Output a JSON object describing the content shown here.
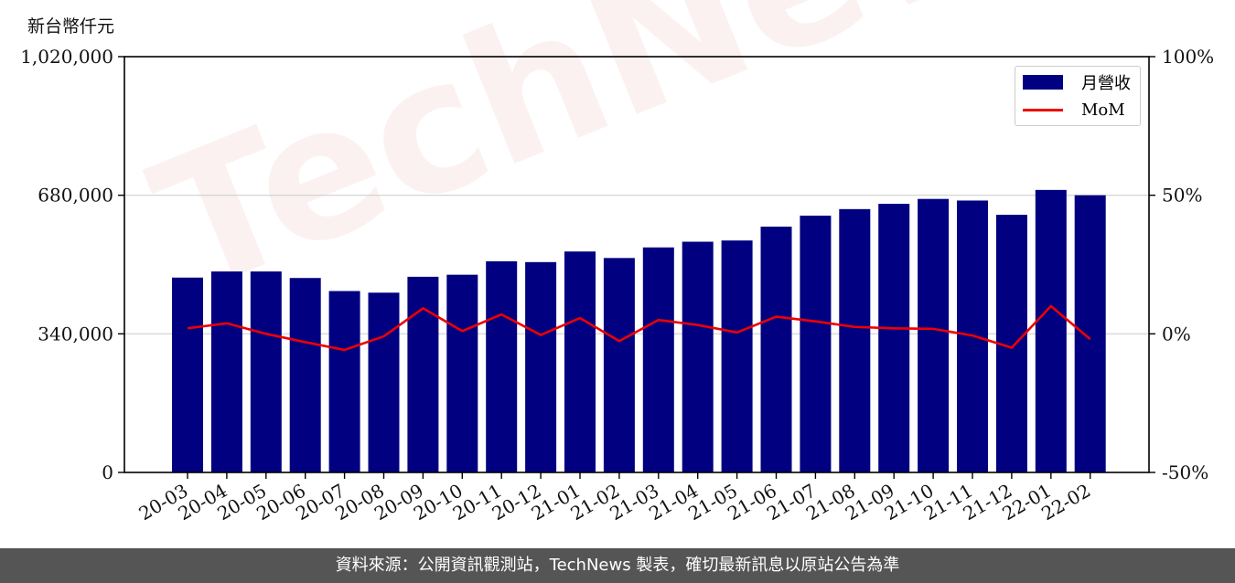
{
  "unit_label": "新台幣仟元",
  "footer_text": "資料來源：公開資訊觀測站，TechNews 製表，確切最新訊息以原站公告為準",
  "watermark": "TechNews",
  "legend": {
    "bar_label": "月營收",
    "line_label": "MoM"
  },
  "colors": {
    "bar": "#000080",
    "line": "#ee0000",
    "grid": "#d0d0d0",
    "footer_bg": "#555555"
  },
  "chart_data": {
    "type": "bar",
    "title": "",
    "xlabel": "",
    "ylabel": "新台幣仟元",
    "categories": [
      "20-03",
      "20-04",
      "20-05",
      "20-06",
      "20-07",
      "20-08",
      "20-09",
      "20-10",
      "20-11",
      "20-12",
      "21-01",
      "21-02",
      "21-03",
      "21-04",
      "21-05",
      "21-06",
      "21-07",
      "21-08",
      "21-09",
      "21-10",
      "21-11",
      "21-12",
      "22-01",
      "22-02"
    ],
    "series": [
      {
        "name": "月營收",
        "axis": "left",
        "type": "bar",
        "values": [
          478000,
          493000,
          493000,
          477000,
          445000,
          441000,
          480000,
          485000,
          518000,
          516000,
          542000,
          526000,
          552000,
          566000,
          569000,
          603000,
          630000,
          646000,
          659000,
          671000,
          667000,
          632000,
          693000,
          680000
        ]
      },
      {
        "name": "MoM",
        "axis": "right",
        "type": "line",
        "unit": "%",
        "values": [
          2.0,
          3.8,
          0.0,
          -3.0,
          -5.8,
          -0.9,
          9.2,
          1.0,
          7.0,
          -0.4,
          5.7,
          -2.6,
          5.0,
          3.2,
          0.5,
          6.2,
          4.5,
          2.5,
          2.0,
          1.8,
          -0.6,
          -5.0,
          10.0,
          -1.9
        ]
      }
    ],
    "y_left": {
      "ylim": [
        0,
        1020000
      ],
      "ticks": [
        0,
        340000,
        680000,
        1020000
      ],
      "tick_labels": [
        "0",
        "340,000",
        "680,000",
        "1,020,000"
      ]
    },
    "y_right": {
      "ylim": [
        -50,
        100
      ],
      "ticks": [
        -50,
        0,
        50,
        100
      ],
      "tick_labels": [
        "-50%",
        "0%",
        "50%",
        "100%"
      ]
    },
    "grid": true,
    "legend_position": "top-right"
  }
}
